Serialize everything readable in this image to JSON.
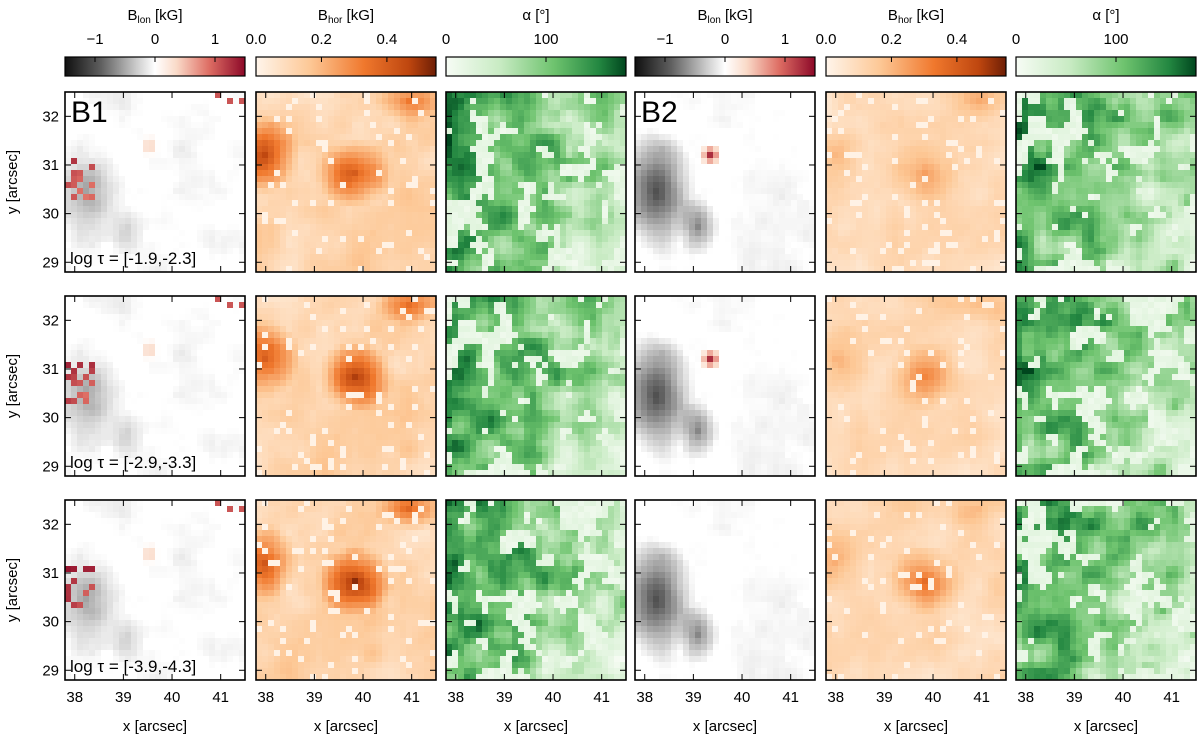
{
  "chart_data": {
    "type": "heatmap",
    "colorbars": [
      {
        "label_main": "B",
        "label_sub": "lon",
        "label_unit": " [kG]",
        "ticks": [
          "−1",
          "0",
          "1"
        ],
        "range": [
          -1.5,
          1.5
        ],
        "cmap": "rdgy"
      },
      {
        "label_main": "B",
        "label_sub": "hor",
        "label_unit": " [kG]",
        "ticks": [
          "0.0",
          "0.2",
          "0.4"
        ],
        "range": [
          0.0,
          0.55
        ],
        "cmap": "oranges"
      },
      {
        "label_main": "α [°]",
        "label_sub": "",
        "label_unit": "",
        "ticks": [
          "0",
          "100"
        ],
        "range": [
          0,
          180
        ],
        "cmap": "greens"
      },
      {
        "label_main": "B",
        "label_sub": "lon",
        "label_unit": " [kG]",
        "ticks": [
          "−1",
          "0",
          "1"
        ],
        "range": [
          -1.5,
          1.5
        ],
        "cmap": "rdgy"
      },
      {
        "label_main": "B",
        "label_sub": "hor",
        "label_unit": " [kG]",
        "ticks": [
          "0.0",
          "0.2",
          "0.4"
        ],
        "range": [
          0.0,
          0.55
        ],
        "cmap": "oranges"
      },
      {
        "label_main": "α [°]",
        "label_sub": "",
        "label_unit": "",
        "ticks": [
          "0",
          "100"
        ],
        "range": [
          0,
          180
        ],
        "cmap": "greens"
      }
    ],
    "groups": [
      "B1",
      "B2"
    ],
    "rows": [
      {
        "tau_label": "log τ = [-1.9,-2.3]"
      },
      {
        "tau_label": "log τ = [-2.9,-3.3]"
      },
      {
        "tau_label": "log τ = [-3.9,-4.3]"
      }
    ],
    "xlabel": "x [arcsec]",
    "ylabel": "y [arcsec]",
    "xticks": [
      38,
      39,
      40,
      41
    ],
    "yticks": [
      29,
      30,
      31,
      32
    ],
    "xlim": [
      37.8,
      41.5
    ],
    "ylim": [
      28.8,
      32.5
    ]
  }
}
